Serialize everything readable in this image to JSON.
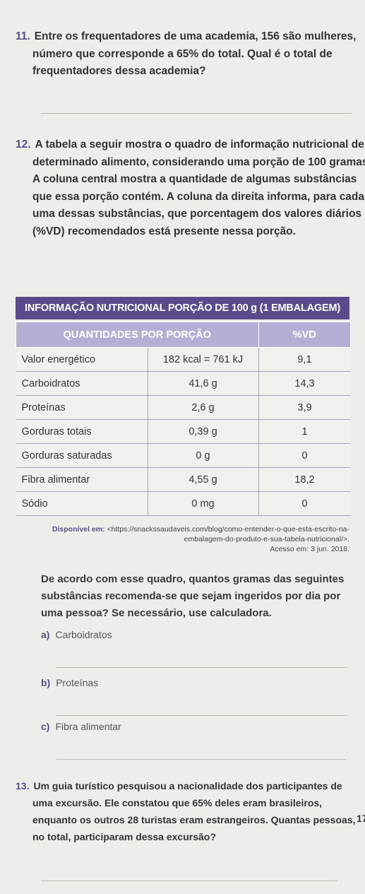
{
  "q11": {
    "number": "11.",
    "text": "Entre os frequentadores de uma academia, 156 são mulheres, número que corresponde a 65% do total. Qual é o total de frequentadores dessa academia?"
  },
  "q12": {
    "number": "12.",
    "text": "A tabela a seguir mostra o quadro de informação nutricional de determinado alimento, considerando uma porção de 100 gramas. A coluna central mostra a quantidade de algumas substâncias que essa porção contém. A coluna da direita informa, para cada uma dessas substâncias, que porcentagem dos valores diários (%VD) recomendados está presente nessa porção.",
    "table": {
      "title": "INFORMAÇÃO NUTRICIONAL PORÇÃO DE 100 g (1 EMBALAGEM)",
      "header_left": "QUANTIDADES POR PORÇÃO",
      "header_right": "%VD",
      "rows": [
        {
          "name": "Valor energético",
          "amount": "182 kcal = 761 kJ",
          "vd": "9,1"
        },
        {
          "name": "Carboidratos",
          "amount": "41,6 g",
          "vd": "14,3"
        },
        {
          "name": "Proteínas",
          "amount": "2,6 g",
          "vd": "3,9"
        },
        {
          "name": "Gorduras totais",
          "amount": "0,39 g",
          "vd": "1"
        },
        {
          "name": "Gorduras saturadas",
          "amount": "0 g",
          "vd": "0"
        },
        {
          "name": "Fibra alimentar",
          "amount": "4,55 g",
          "vd": "18,2"
        },
        {
          "name": "Sódio",
          "amount": "0 mg",
          "vd": "0"
        }
      ]
    },
    "source_prefix": "Disponível em:",
    "source_url": "<https://snackssaudaveis.com/blog/como-entender-o-que-esta-escrito-na-embalagem-do-produto-e-sua-tabela-nutricional/>.",
    "source_access": "Acesso em: 3 jun. 2018.",
    "question": "De acordo com esse quadro, quantos gramas das seguintes substâncias recomenda-se que sejam ingeridos por dia por uma pessoa? Se necessário, use calculadora.",
    "items": [
      {
        "letter": "a)",
        "text": "Carboidratos"
      },
      {
        "letter": "b)",
        "text": "Proteínas"
      },
      {
        "letter": "c)",
        "text": "Fibra alimentar"
      }
    ]
  },
  "q13": {
    "number": "13.",
    "text": "Um guia turístico pesquisou a nacionalidade dos participantes de uma excursão. Ele constatou que 65% deles eram brasileiros, enquanto os outros 28 turistas eram estrangeiros. Quantas pessoas, no total, participaram dessa excursão?"
  },
  "margin_number": "17"
}
